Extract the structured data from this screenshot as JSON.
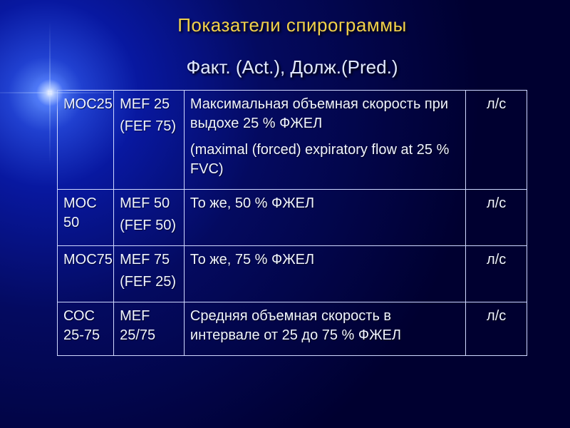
{
  "title_color": "#f2d14a",
  "subtitle_color": "#e0e8ff",
  "title": "Показатели спирограммы",
  "subtitle": "Факт. (Act.), Долж.(Pred.)",
  "columns": {
    "widths_pct": [
      12,
      15,
      60,
      13
    ],
    "unit_align": "center"
  },
  "background": {
    "gradient_from": "#6090ff",
    "gradient_to": "#000030",
    "flare_center": "#ffffff"
  },
  "border_color": "#cfd8ff",
  "text_color": "#f0f4ff",
  "font_family": "Arial",
  "title_fontsize_pt": 20,
  "cell_fontsize_pt": 15,
  "rows": [
    {
      "abbr1": "МОС25",
      "abbr2": "MEF 25",
      "abbr2_secondary": "(FEF 75)",
      "desc": "Максимальная объемная скорость при выдохе 25 % ФЖЕЛ",
      "desc_secondary": "(maximal (forced) expiratory flow at 25 % FVC)",
      "unit": "л/с"
    },
    {
      "abbr1": "МОС 50",
      "abbr2": "MEF 50",
      "abbr2_secondary": "(FEF 50)",
      "desc": "То же, 50 % ФЖЕЛ",
      "desc_secondary": "",
      "unit": "л/с"
    },
    {
      "abbr1": "МОС75",
      "abbr2": "MEF 75",
      "abbr2_secondary": "(FEF 25)",
      "desc": "То же, 75 % ФЖЕЛ",
      "desc_secondary": "",
      "unit": "л/с"
    },
    {
      "abbr1": "СОС 25-75",
      "abbr2": "MEF 25/75",
      "abbr2_secondary": "",
      "desc": "Средняя объемная скорость в интервале от 25 до 75 % ФЖЕЛ",
      "desc_secondary": "",
      "unit": "л/с"
    }
  ]
}
